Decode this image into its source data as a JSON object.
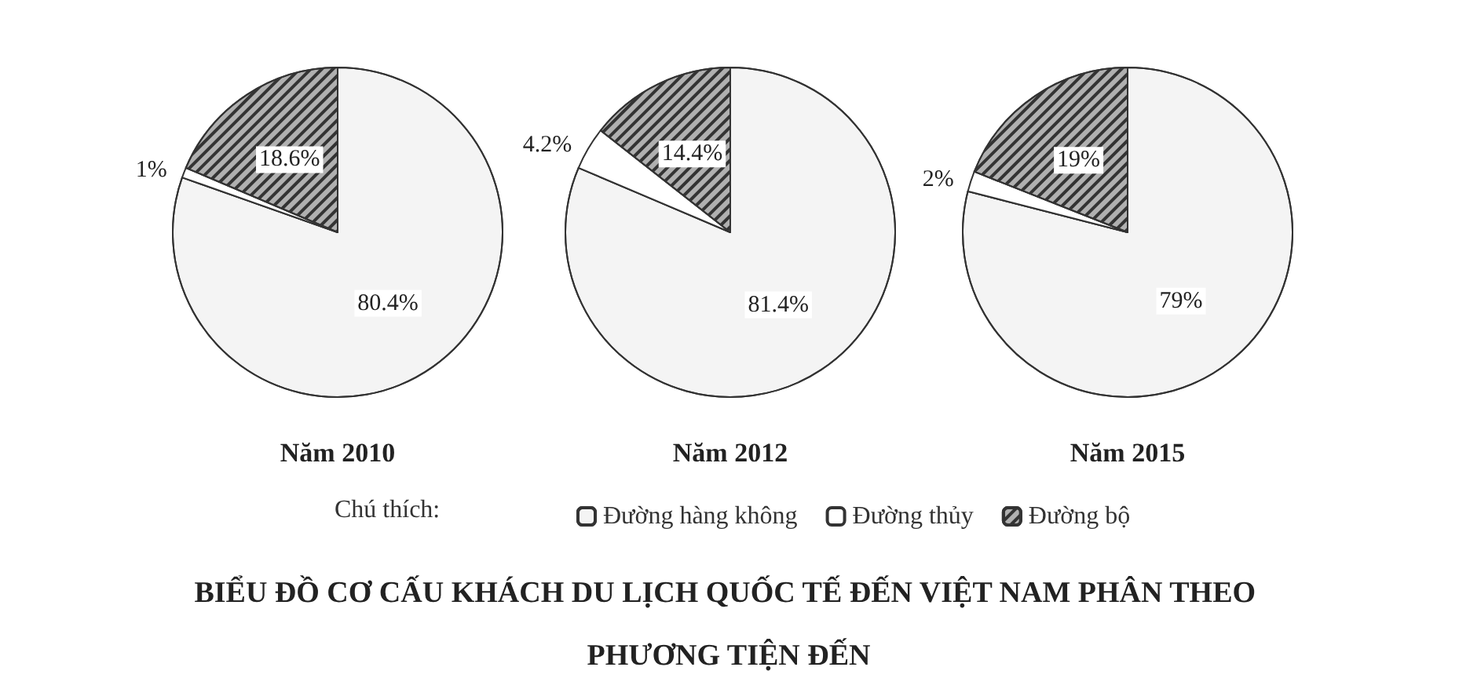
{
  "chart_data": {
    "type": "pie",
    "title": "BIỂU ĐỒ CƠ CẤU KHÁCH DU LỊCH QUỐC TẾ ĐẾN VIỆT NAM PHÂN THEO PHƯƠNG TIỆN ĐẾN",
    "categories": [
      "Đường hàng không",
      "Đường thủy",
      "Đường bộ"
    ],
    "colors": [
      "#f4f4f4",
      "#ffffff",
      "#b0b0b0"
    ],
    "legend": "bottom",
    "legend_title": "Chú thích:",
    "series": [
      {
        "name": "Năm 2010",
        "values": [
          80.4,
          1,
          18.6
        ],
        "value_labels": [
          "80.4%",
          "1%",
          "18.6%"
        ]
      },
      {
        "name": "Năm 2012",
        "values": [
          81.4,
          4.2,
          14.4
        ],
        "value_labels": [
          "81.4%",
          "4.2%",
          "14.4%"
        ]
      },
      {
        "name": "Năm 2015",
        "values": [
          79,
          2,
          19
        ],
        "value_labels": [
          "79%",
          "2%",
          "19%"
        ]
      }
    ]
  }
}
